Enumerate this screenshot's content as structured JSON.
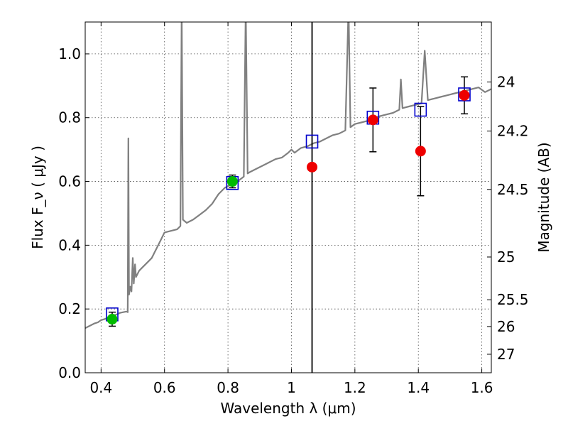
{
  "chart_data": {
    "type": "scatter",
    "title": "",
    "xlabel": "Wavelength  λ (μm)",
    "ylabel": "Flux  F_ν  ( μJy )",
    "y2label": "Magnitude (AB)",
    "xlim": [
      0.35,
      1.63
    ],
    "ylim": [
      0.0,
      1.1
    ],
    "grid": true,
    "x_ticks": [
      0.4,
      0.6,
      0.8,
      1.0,
      1.2,
      1.4,
      1.6
    ],
    "x_tick_labels": [
      "0.4",
      "0.6",
      "0.8",
      "1",
      "1.2",
      "1.4",
      "1.6"
    ],
    "y_ticks": [
      0.0,
      0.2,
      0.4,
      0.6,
      0.8,
      1.0
    ],
    "y_tick_labels": [
      "0.0",
      "0.2",
      "0.4",
      "0.6",
      "0.8",
      "1.0"
    ],
    "y2_ticks": [
      {
        "label": "24",
        "flux": 0.912
      },
      {
        "label": "24.2",
        "flux": 0.758
      },
      {
        "label": "24.5",
        "flux": 0.575
      },
      {
        "label": "25",
        "flux": 0.363
      },
      {
        "label": "25.5",
        "flux": 0.229
      },
      {
        "label": "26",
        "flux": 0.145
      },
      {
        "label": "27",
        "flux": 0.058
      }
    ],
    "vertical_line_x": 1.065,
    "colors": {
      "spectrum": "#808080",
      "model_box": "#0000cc",
      "green_point": "#00bb00",
      "red_point": "#ee0000",
      "errorbar": "#000000",
      "vline": "#000000"
    },
    "series": [
      {
        "marker": "square-open",
        "points": [
          {
            "x": 0.435,
            "y": 0.183
          },
          {
            "x": 0.814,
            "y": 0.595
          },
          {
            "x": 1.065,
            "y": 0.725
          },
          {
            "x": 1.257,
            "y": 0.8
          },
          {
            "x": 1.407,
            "y": 0.825
          },
          {
            "x": 1.545,
            "y": 0.873
          }
        ]
      },
      {
        "marker": "circle-green",
        "points": [
          {
            "x": 0.435,
            "y": 0.168,
            "yerr": 0.022
          },
          {
            "x": 0.814,
            "y": 0.6,
            "yerr": 0.02
          }
        ]
      },
      {
        "marker": "circle-red",
        "points": [
          {
            "x": 1.065,
            "y": 0.645,
            "yerr": 0
          },
          {
            "x": 1.257,
            "y": 0.793,
            "yerr": 0.1
          },
          {
            "x": 1.407,
            "y": 0.695,
            "yerr": 0.14
          },
          {
            "x": 1.545,
            "y": 0.87,
            "yerr": 0.058
          }
        ]
      }
    ],
    "spectrum": [
      [
        0.35,
        0.14
      ],
      [
        0.36,
        0.145
      ],
      [
        0.37,
        0.15
      ],
      [
        0.38,
        0.155
      ],
      [
        0.39,
        0.158
      ],
      [
        0.4,
        0.165
      ],
      [
        0.41,
        0.168
      ],
      [
        0.42,
        0.172
      ],
      [
        0.43,
        0.176
      ],
      [
        0.44,
        0.18
      ],
      [
        0.45,
        0.183
      ],
      [
        0.46,
        0.188
      ],
      [
        0.47,
        0.19
      ],
      [
        0.48,
        0.192
      ],
      [
        0.484,
        0.19
      ],
      [
        0.486,
        0.735
      ],
      [
        0.488,
        0.245
      ],
      [
        0.492,
        0.27
      ],
      [
        0.496,
        0.255
      ],
      [
        0.5,
        0.36
      ],
      [
        0.503,
        0.28
      ],
      [
        0.507,
        0.34
      ],
      [
        0.51,
        0.3
      ],
      [
        0.52,
        0.32
      ],
      [
        0.53,
        0.33
      ],
      [
        0.54,
        0.34
      ],
      [
        0.55,
        0.35
      ],
      [
        0.56,
        0.36
      ],
      [
        0.57,
        0.38
      ],
      [
        0.58,
        0.4
      ],
      [
        0.59,
        0.42
      ],
      [
        0.6,
        0.44
      ],
      [
        0.62,
        0.445
      ],
      [
        0.64,
        0.45
      ],
      [
        0.65,
        0.46
      ],
      [
        0.654,
        1.15
      ],
      [
        0.658,
        0.48
      ],
      [
        0.67,
        0.47
      ],
      [
        0.69,
        0.48
      ],
      [
        0.71,
        0.495
      ],
      [
        0.73,
        0.51
      ],
      [
        0.75,
        0.53
      ],
      [
        0.77,
        0.56
      ],
      [
        0.79,
        0.58
      ],
      [
        0.81,
        0.59
      ],
      [
        0.83,
        0.6
      ],
      [
        0.85,
        0.615
      ],
      [
        0.856,
        1.15
      ],
      [
        0.862,
        0.625
      ],
      [
        0.87,
        0.63
      ],
      [
        0.89,
        0.64
      ],
      [
        0.91,
        0.65
      ],
      [
        0.93,
        0.66
      ],
      [
        0.95,
        0.67
      ],
      [
        0.97,
        0.675
      ],
      [
        0.99,
        0.69
      ],
      [
        1.0,
        0.7
      ],
      [
        1.01,
        0.69
      ],
      [
        1.03,
        0.705
      ],
      [
        1.05,
        0.71
      ],
      [
        1.07,
        0.72
      ],
      [
        1.09,
        0.725
      ],
      [
        1.11,
        0.735
      ],
      [
        1.13,
        0.745
      ],
      [
        1.15,
        0.75
      ],
      [
        1.17,
        0.76
      ],
      [
        1.18,
        1.15
      ],
      [
        1.186,
        0.77
      ],
      [
        1.2,
        0.78
      ],
      [
        1.22,
        0.785
      ],
      [
        1.24,
        0.79
      ],
      [
        1.26,
        0.8
      ],
      [
        1.28,
        0.805
      ],
      [
        1.3,
        0.81
      ],
      [
        1.32,
        0.815
      ],
      [
        1.34,
        0.825
      ],
      [
        1.345,
        0.92
      ],
      [
        1.35,
        0.83
      ],
      [
        1.37,
        0.835
      ],
      [
        1.39,
        0.84
      ],
      [
        1.41,
        0.845
      ],
      [
        1.42,
        1.01
      ],
      [
        1.43,
        0.855
      ],
      [
        1.45,
        0.86
      ],
      [
        1.47,
        0.865
      ],
      [
        1.49,
        0.87
      ],
      [
        1.51,
        0.875
      ],
      [
        1.53,
        0.88
      ],
      [
        1.55,
        0.885
      ],
      [
        1.57,
        0.89
      ],
      [
        1.59,
        0.895
      ],
      [
        1.61,
        0.88
      ],
      [
        1.63,
        0.89
      ]
    ]
  }
}
